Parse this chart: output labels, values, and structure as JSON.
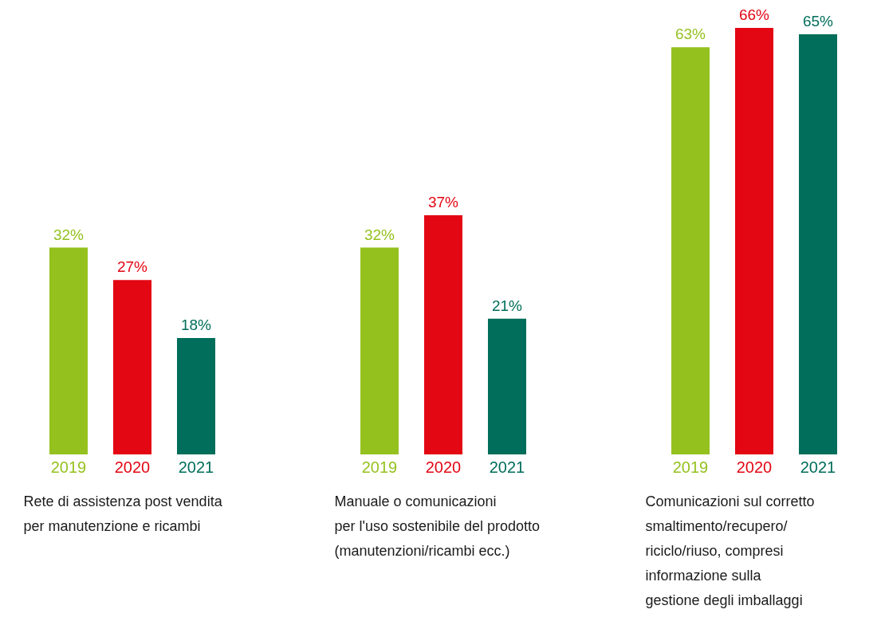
{
  "chart_data": [
    {
      "type": "bar",
      "categories": [
        "2019",
        "2020",
        "2021"
      ],
      "values": [
        32,
        27,
        18
      ],
      "value_labels": [
        "32%",
        "27%",
        "18%"
      ],
      "colors": [
        "#95c11f",
        "#e30613",
        "#006e5a"
      ],
      "xlabel": "Rete di assistenza post vendita\nper manutenzione e ricambi",
      "tick_labels": "x"
    },
    {
      "type": "bar",
      "categories": [
        "2019",
        "2020",
        "2021"
      ],
      "values": [
        32,
        37,
        21
      ],
      "value_labels": [
        "32%",
        "37%",
        "21%"
      ],
      "colors": [
        "#95c11f",
        "#e30613",
        "#006e5a"
      ],
      "xlabel": "Manuale o comunicazioni\nper l'uso sostenibile del prodotto\n(manutenzioni/ricambi ecc.)",
      "tick_labels": "x"
    },
    {
      "type": "bar",
      "categories": [
        "2019",
        "2020",
        "2021"
      ],
      "values": [
        63,
        66,
        65
      ],
      "value_labels": [
        "63%",
        "66%",
        "65%"
      ],
      "colors": [
        "#95c11f",
        "#e30613",
        "#006e5a"
      ],
      "xlabel": "Comunicazioni sul corretto\nsmaltimento/recupero/\nriciclo/riuso, compresi\ninformazione sulla\ngestione degli imballaggi",
      "tick_labels": "x"
    }
  ]
}
